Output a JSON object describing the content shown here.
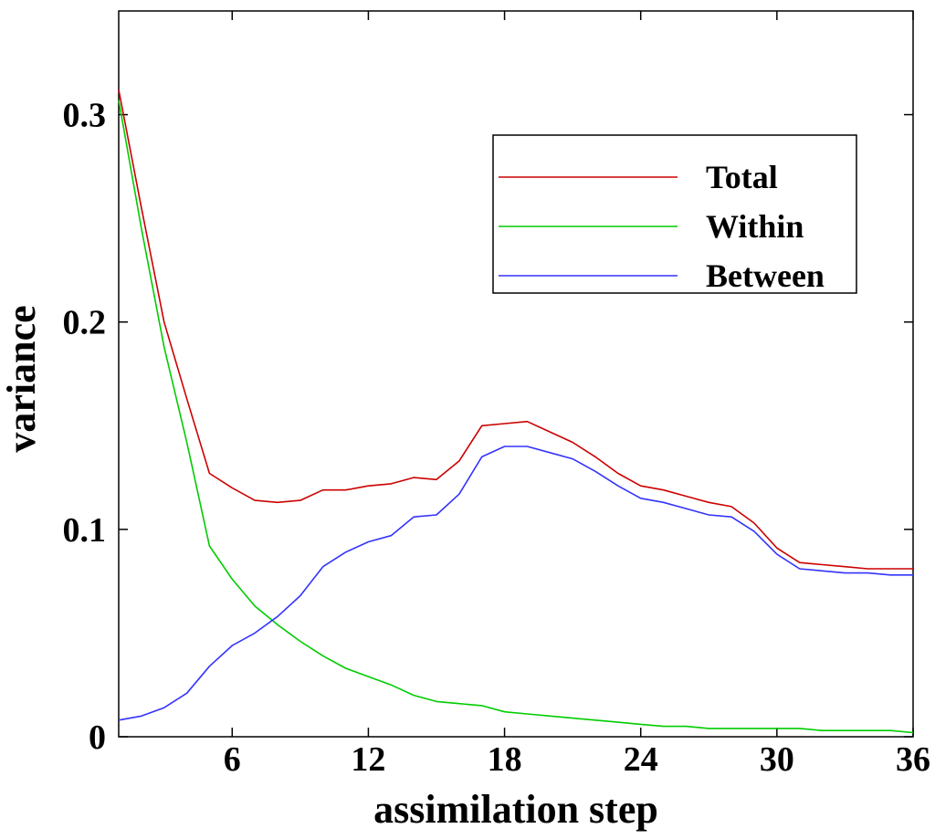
{
  "chart_data": {
    "type": "line",
    "title": "",
    "xlabel": "assimilation step",
    "ylabel": "variance",
    "xlim": [
      1,
      36
    ],
    "ylim": [
      0,
      0.35
    ],
    "xticks": [
      6,
      12,
      18,
      24,
      30,
      36
    ],
    "xtick_labels": [
      "6",
      "12",
      "18",
      "24",
      "30",
      "36"
    ],
    "yticks": [
      0,
      0.1,
      0.2,
      0.3
    ],
    "ytick_labels": [
      "0",
      "0.1",
      "0.2",
      "0.3"
    ],
    "grid": false,
    "legend_position": "top-right",
    "x": [
      1,
      2,
      3,
      4,
      5,
      6,
      7,
      8,
      9,
      10,
      11,
      12,
      13,
      14,
      15,
      16,
      17,
      18,
      19,
      20,
      21,
      22,
      23,
      24,
      25,
      26,
      27,
      28,
      29,
      30,
      31,
      32,
      33,
      34,
      35,
      36
    ],
    "series": [
      {
        "name": "Total",
        "color": "#cc0000",
        "values": [
          0.312,
          0.255,
          0.2,
          0.163,
          0.127,
          0.12,
          0.114,
          0.113,
          0.114,
          0.119,
          0.119,
          0.121,
          0.122,
          0.125,
          0.124,
          0.133,
          0.15,
          0.151,
          0.152,
          0.147,
          0.142,
          0.135,
          0.127,
          0.121,
          0.119,
          0.116,
          0.113,
          0.111,
          0.103,
          0.091,
          0.084,
          0.083,
          0.082,
          0.081,
          0.081,
          0.081
        ]
      },
      {
        "name": "Within",
        "color": "#00cc00",
        "values": [
          0.307,
          0.245,
          0.188,
          0.142,
          0.092,
          0.076,
          0.063,
          0.054,
          0.046,
          0.039,
          0.033,
          0.029,
          0.025,
          0.02,
          0.017,
          0.016,
          0.015,
          0.012,
          0.011,
          0.01,
          0.009,
          0.008,
          0.007,
          0.006,
          0.005,
          0.005,
          0.004,
          0.004,
          0.004,
          0.004,
          0.004,
          0.003,
          0.003,
          0.003,
          0.003,
          0.002
        ]
      },
      {
        "name": "Between",
        "color": "#3333ff",
        "values": [
          0.008,
          0.01,
          0.014,
          0.021,
          0.034,
          0.044,
          0.05,
          0.058,
          0.068,
          0.082,
          0.089,
          0.094,
          0.097,
          0.106,
          0.107,
          0.117,
          0.135,
          0.14,
          0.14,
          0.137,
          0.134,
          0.128,
          0.121,
          0.115,
          0.113,
          0.11,
          0.107,
          0.106,
          0.099,
          0.088,
          0.081,
          0.08,
          0.079,
          0.079,
          0.078,
          0.078
        ]
      }
    ]
  }
}
